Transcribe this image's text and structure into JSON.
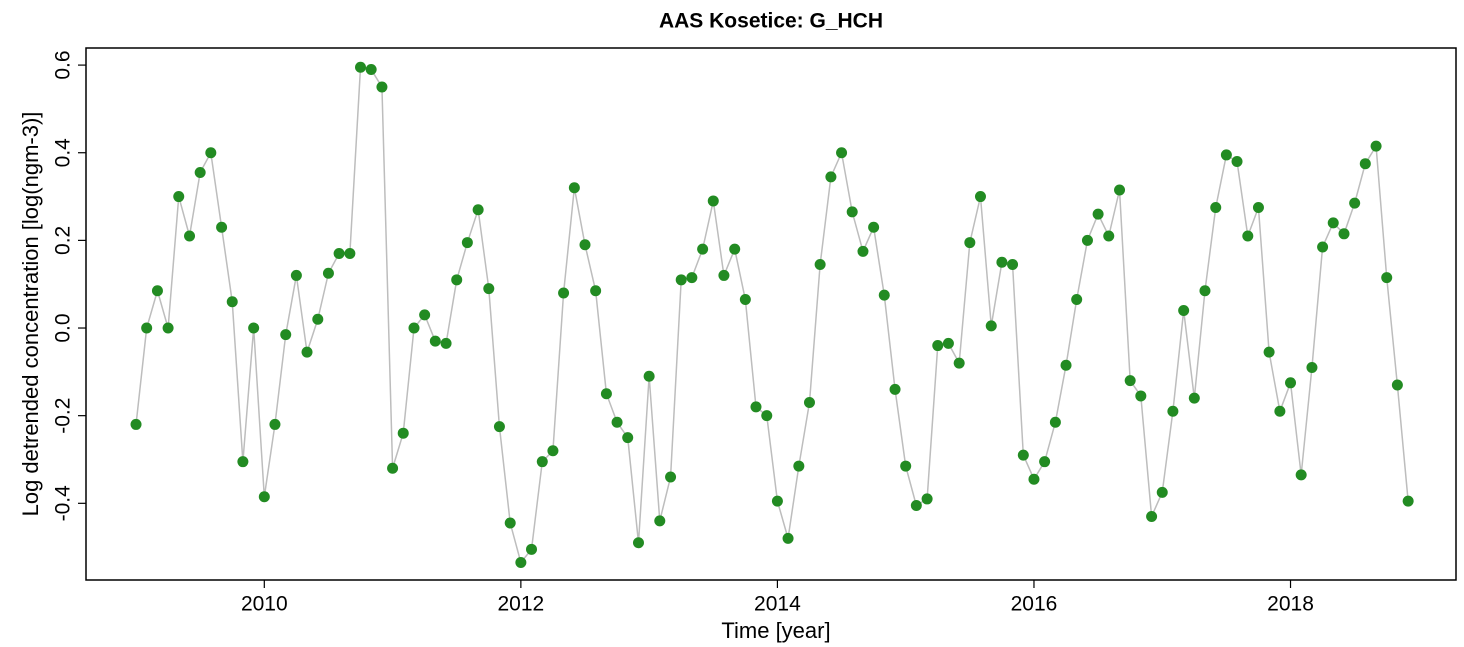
{
  "chart_data": {
    "type": "line",
    "title": "AAS Kosetice: G_HCH",
    "x_label": "Time [year]",
    "y_label": "Log detrended concentration [log(ngm-3)]",
    "x": [
      2009,
      2009.083,
      2009.167,
      2009.25,
      2009.333,
      2009.417,
      2009.5,
      2009.583,
      2009.667,
      2009.75,
      2009.833,
      2009.917,
      2010,
      2010.083,
      2010.167,
      2010.25,
      2010.333,
      2010.417,
      2010.5,
      2010.583,
      2010.667,
      2010.75,
      2010.833,
      2010.917,
      2011,
      2011.083,
      2011.167,
      2011.25,
      2011.333,
      2011.417,
      2011.5,
      2011.583,
      2011.667,
      2011.75,
      2011.833,
      2011.917,
      2012,
      2012.083,
      2012.167,
      2012.25,
      2012.333,
      2012.417,
      2012.5,
      2012.583,
      2012.667,
      2012.75,
      2012.833,
      2012.917,
      2013,
      2013.083,
      2013.167,
      2013.25,
      2013.333,
      2013.417,
      2013.5,
      2013.583,
      2013.667,
      2013.75,
      2013.833,
      2013.917,
      2014,
      2014.083,
      2014.167,
      2014.25,
      2014.333,
      2014.417,
      2014.5,
      2014.583,
      2014.667,
      2014.75,
      2014.833,
      2014.917,
      2015,
      2015.083,
      2015.167,
      2015.25,
      2015.333,
      2015.417,
      2015.5,
      2015.583,
      2015.667,
      2015.75,
      2015.833,
      2015.917,
      2016,
      2016.083,
      2016.167,
      2016.25,
      2016.333,
      2016.417,
      2016.5,
      2016.583,
      2016.667,
      2016.75,
      2016.833,
      2016.917,
      2017,
      2017.083,
      2017.167,
      2017.25,
      2017.333,
      2017.417,
      2017.5,
      2017.583,
      2017.667,
      2017.75,
      2017.833,
      2017.917,
      2018,
      2018.083,
      2018.167,
      2018.25,
      2018.333,
      2018.417,
      2018.5,
      2018.583,
      2018.667,
      2018.75,
      2018.833,
      2018.917
    ],
    "values": [
      -0.22,
      0.0,
      0.085,
      0.0,
      0.3,
      0.21,
      0.355,
      0.4,
      0.23,
      0.06,
      -0.305,
      0.0,
      -0.385,
      -0.22,
      -0.015,
      0.12,
      -0.055,
      0.02,
      0.125,
      0.17,
      0.17,
      0.595,
      0.59,
      0.55,
      -0.32,
      -0.24,
      0.0,
      0.03,
      -0.03,
      -0.035,
      0.11,
      0.195,
      0.27,
      0.09,
      -0.225,
      -0.445,
      -0.535,
      -0.505,
      -0.305,
      -0.28,
      0.08,
      0.32,
      0.19,
      0.085,
      -0.15,
      -0.215,
      -0.25,
      -0.49,
      -0.11,
      -0.44,
      -0.34,
      0.11,
      0.115,
      0.18,
      0.29,
      0.12,
      0.18,
      0.065,
      -0.18,
      -0.2,
      -0.395,
      -0.48,
      -0.315,
      -0.17,
      0.145,
      0.345,
      0.4,
      0.265,
      0.175,
      0.23,
      0.075,
      -0.14,
      -0.315,
      -0.405,
      -0.39,
      -0.04,
      -0.035,
      -0.08,
      0.195,
      0.3,
      0.005,
      0.15,
      0.145,
      -0.29,
      -0.345,
      -0.305,
      -0.215,
      -0.085,
      0.065,
      0.2,
      0.26,
      0.21,
      0.315,
      -0.12,
      -0.155,
      -0.43,
      -0.375,
      -0.19,
      0.04,
      -0.16,
      0.085,
      0.275,
      0.395,
      0.38,
      0.21,
      0.275,
      -0.055,
      -0.19,
      -0.125,
      -0.335,
      -0.09,
      0.185,
      0.24,
      0.215,
      0.285,
      0.375,
      0.415,
      0.115,
      -0.13,
      -0.395
    ],
    "color": "#228b22",
    "line_color": "#bdbdbd",
    "xlim": [
      2008.61,
      2019.29
    ],
    "xticks": [
      2010,
      2012,
      2014,
      2016,
      2018
    ],
    "ylim": [
      -0.575,
      0.639
    ],
    "yticks": [
      -0.4,
      -0.2,
      {
        "value": 0,
        "label": "0.0"
      },
      0.2,
      0.4,
      0.6
    ]
  }
}
